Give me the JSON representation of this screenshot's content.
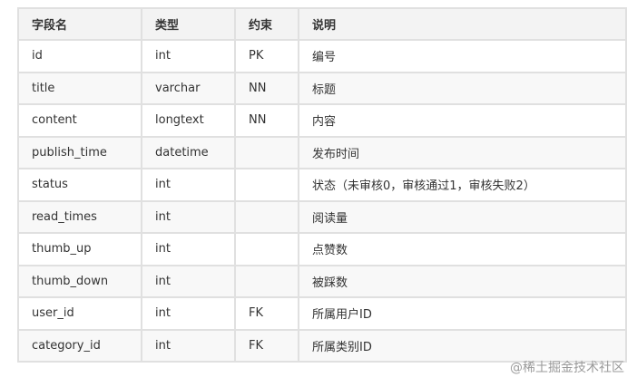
{
  "headers": [
    "字段名",
    "类型",
    "约束",
    "说明"
  ],
  "rows": [
    [
      "id",
      "int",
      "PK",
      "编号"
    ],
    [
      "title",
      "varchar",
      "NN",
      "标题"
    ],
    [
      "content",
      "longtext",
      "NN",
      "内容"
    ],
    [
      "publish_time",
      "datetime",
      "",
      "发布时间"
    ],
    [
      "status",
      "int",
      "",
      "状态（未审核0，审核通过1，审核失败2）"
    ],
    [
      "read_times",
      "int",
      "",
      "阅读量"
    ],
    [
      "thumb_up",
      "int",
      "",
      "点赞数"
    ],
    [
      "thumb_down",
      "int",
      "",
      "被踩数"
    ],
    [
      "user_id",
      "int",
      "FK",
      "所属用户ID"
    ],
    [
      "category_id",
      "int",
      "FK",
      "所属类别ID"
    ]
  ],
  "watermark": "@稀土掘金技术社区"
}
